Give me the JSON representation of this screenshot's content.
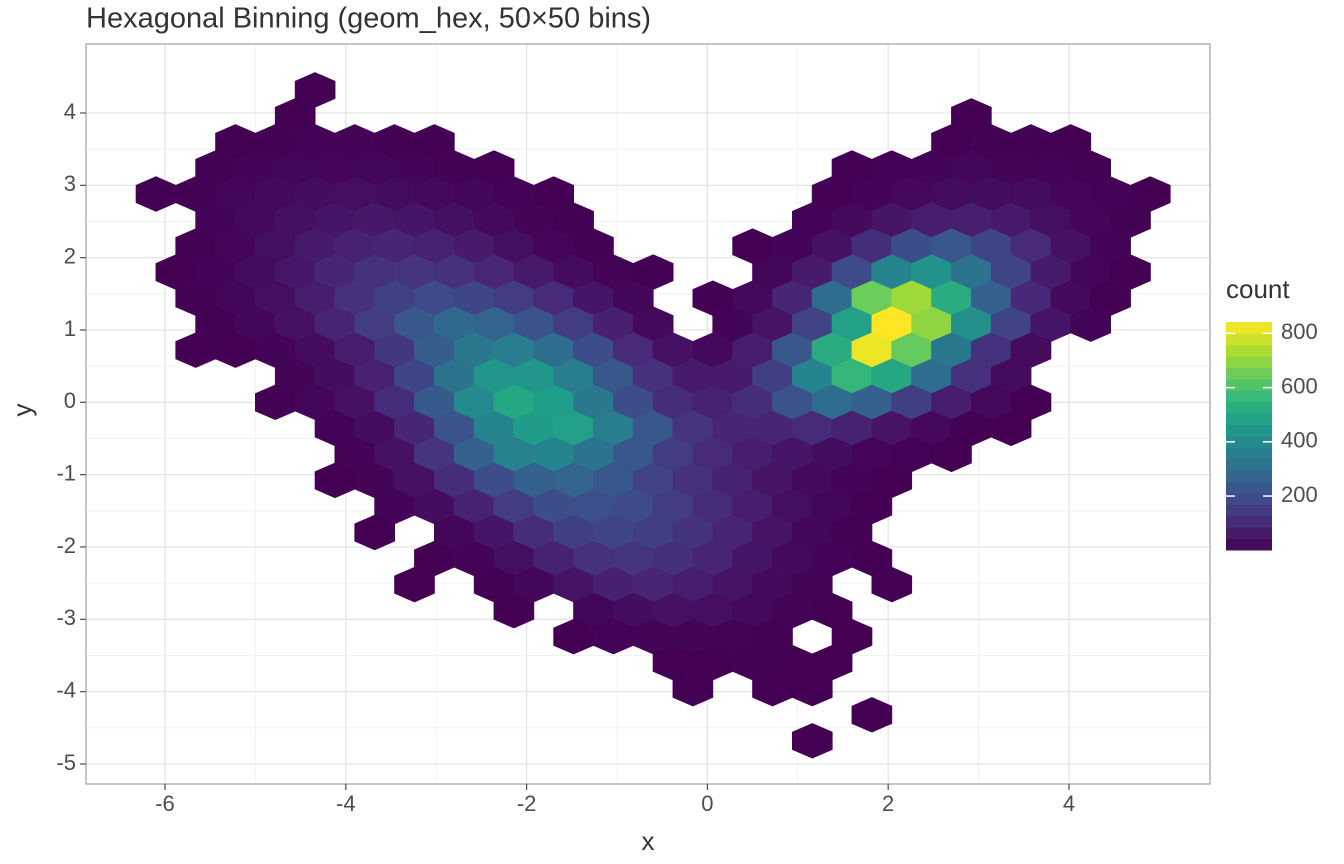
{
  "chart_data": {
    "type": "hexbin",
    "title": "Hexagonal Binning (geom_hex, 50×50 bins)",
    "x_label": "x",
    "y_label": "y",
    "xlim": [
      -6.874,
      5.56
    ],
    "ylim": [
      -5.277,
      4.954
    ],
    "xticks": [
      -6,
      -4,
      -2,
      0,
      2,
      4
    ],
    "yticks": [
      -5,
      -4,
      -3,
      -2,
      -1,
      0,
      1,
      2,
      3,
      4
    ],
    "grid": true,
    "colorbar": {
      "title": "count",
      "lim": [
        1,
        842
      ],
      "ticks": [
        200,
        400,
        600,
        800
      ],
      "colors": [
        "#440154",
        "#482878",
        "#3e4989",
        "#31688e",
        "#26828e",
        "#1f9e89",
        "#35b779",
        "#6ece58",
        "#b5de2b",
        "#fde725"
      ]
    },
    "rows": [
      {
        "y": 4.32,
        "x": [
          -4.34
        ],
        "counts": [
          1
        ]
      },
      {
        "y": 3.96,
        "x": [
          -4.56,
          2.92
        ],
        "counts": [
          1,
          1
        ]
      },
      {
        "y": 3.6,
        "x": [
          -5.22,
          -4.78,
          -4.34,
          -3.9,
          -3.46,
          -3.02,
          2.7,
          3.14,
          3.58,
          4.02
        ],
        "counts": [
          2,
          4,
          6,
          5,
          3,
          1,
          2,
          3,
          3,
          1
        ]
      },
      {
        "y": 3.24,
        "x": [
          -5.44,
          -5.0,
          -4.56,
          -4.12,
          -3.68,
          -3.24,
          -2.8,
          -2.36,
          1.6,
          2.04,
          2.48,
          2.92,
          3.36,
          3.8,
          4.24
        ],
        "counts": [
          3,
          8,
          12,
          14,
          12,
          8,
          4,
          2,
          2,
          5,
          9,
          12,
          10,
          6,
          3
        ]
      },
      {
        "y": 2.88,
        "x": [
          -6.1,
          -5.66,
          -5.22,
          -4.78,
          -4.34,
          -3.9,
          -3.46,
          -3.02,
          -2.58,
          -2.14,
          -1.7,
          1.38,
          1.82,
          2.26,
          2.7,
          3.14,
          3.58,
          4.02,
          4.46,
          4.9
        ],
        "counts": [
          1,
          4,
          12,
          22,
          30,
          32,
          28,
          20,
          12,
          6,
          2,
          2,
          8,
          18,
          28,
          30,
          24,
          14,
          6,
          2
        ]
      },
      {
        "y": 2.52,
        "x": [
          -5.44,
          -5.0,
          -4.56,
          -4.12,
          -3.68,
          -3.24,
          -2.8,
          -2.36,
          -1.92,
          -1.48,
          1.16,
          1.6,
          2.04,
          2.48,
          2.92,
          3.36,
          3.8,
          4.24,
          4.68
        ],
        "counts": [
          8,
          20,
          38,
          50,
          55,
          50,
          38,
          22,
          10,
          3,
          6,
          22,
          48,
          70,
          72,
          58,
          34,
          14,
          3
        ]
      },
      {
        "y": 2.16,
        "x": [
          -5.66,
          -5.22,
          -4.78,
          -4.34,
          -3.9,
          -3.46,
          -3.02,
          -2.58,
          -2.14,
          -1.7,
          -1.26,
          0.5,
          0.94,
          1.38,
          1.82,
          2.26,
          2.7,
          3.14,
          3.58,
          4.02,
          4.46
        ],
        "counts": [
          3,
          14,
          35,
          60,
          80,
          88,
          80,
          60,
          35,
          14,
          3,
          1,
          8,
          40,
          110,
          200,
          230,
          180,
          100,
          40,
          8
        ]
      },
      {
        "y": 1.8,
        "x": [
          -5.88,
          -5.44,
          -5.0,
          -4.56,
          -4.12,
          -3.68,
          -3.24,
          -2.8,
          -2.36,
          -1.92,
          -1.48,
          -1.04,
          -0.6,
          0.72,
          1.16,
          1.6,
          2.04,
          2.48,
          2.92,
          3.36,
          3.8,
          4.24,
          4.68
        ],
        "counts": [
          2,
          8,
          25,
          52,
          90,
          120,
          130,
          120,
          92,
          58,
          28,
          10,
          3,
          12,
          60,
          190,
          380,
          430,
          320,
          170,
          60,
          14,
          2
        ]
      },
      {
        "y": 1.44,
        "x": [
          -5.66,
          -5.22,
          -4.78,
          -4.34,
          -3.9,
          -3.46,
          -3.02,
          -2.58,
          -2.14,
          -1.7,
          -1.26,
          -0.82,
          0.06,
          0.5,
          0.94,
          1.38,
          1.82,
          2.26,
          2.7,
          3.14,
          3.58,
          4.02,
          4.46
        ],
        "counts": [
          4,
          12,
          32,
          68,
          120,
          165,
          190,
          180,
          150,
          100,
          50,
          15,
          3,
          20,
          90,
          300,
          650,
          720,
          520,
          260,
          95,
          22,
          3
        ]
      },
      {
        "y": 1.08,
        "x": [
          -5.44,
          -5.0,
          -4.56,
          -4.12,
          -3.68,
          -3.24,
          -2.8,
          -2.36,
          -1.92,
          -1.48,
          -1.04,
          -0.6,
          0.28,
          0.72,
          1.16,
          1.6,
          2.04,
          2.48,
          2.92,
          3.36,
          3.8,
          4.24
        ],
        "counts": [
          4,
          16,
          40,
          85,
          150,
          230,
          280,
          270,
          220,
          150,
          75,
          22,
          8,
          45,
          170,
          480,
          842,
          700,
          420,
          170,
          50,
          8
        ]
      },
      {
        "y": 0.72,
        "x": [
          -5.66,
          -5.22,
          -4.78,
          -4.34,
          -3.9,
          -3.46,
          -3.02,
          -2.58,
          -2.14,
          -1.7,
          -1.26,
          -0.82,
          -0.38,
          0.06,
          0.5,
          0.94,
          1.38,
          1.82,
          2.26,
          2.7,
          3.14,
          3.58
        ],
        "counts": [
          1,
          2,
          8,
          28,
          65,
          140,
          250,
          340,
          360,
          300,
          200,
          100,
          40,
          20,
          70,
          230,
          520,
          820,
          640,
          340,
          120,
          25
        ]
      },
      {
        "y": 0.36,
        "x": [
          -4.56,
          -4.12,
          -3.68,
          -3.24,
          -2.8,
          -2.36,
          -1.92,
          -1.48,
          -1.04,
          -0.6,
          -0.16,
          0.28,
          0.72,
          1.16,
          1.6,
          2.04,
          2.48,
          2.92,
          3.36
        ],
        "counts": [
          10,
          30,
          80,
          180,
          320,
          440,
          440,
          360,
          230,
          120,
          60,
          60,
          160,
          380,
          560,
          500,
          300,
          120,
          25
        ]
      },
      {
        "y": 0.0,
        "x": [
          -4.78,
          -4.34,
          -3.9,
          -3.46,
          -3.02,
          -2.58,
          -2.14,
          -1.7,
          -1.26,
          -0.82,
          -0.38,
          0.06,
          0.5,
          0.94,
          1.38,
          1.82,
          2.26,
          2.7,
          3.14,
          3.58
        ],
        "counts": [
          3,
          12,
          40,
          110,
          240,
          400,
          500,
          470,
          340,
          200,
          110,
          80,
          110,
          220,
          300,
          260,
          160,
          70,
          18,
          2
        ]
      },
      {
        "y": -0.36,
        "x": [
          -4.12,
          -3.68,
          -3.24,
          -2.8,
          -2.36,
          -1.92,
          -1.48,
          -1.04,
          -0.6,
          -0.16,
          0.28,
          0.72,
          1.16,
          1.6,
          2.04,
          2.48,
          2.92,
          3.36
        ],
        "counts": [
          6,
          30,
          90,
          220,
          380,
          460,
          480,
          360,
          230,
          130,
          90,
          90,
          100,
          80,
          45,
          18,
          4,
          1
        ]
      },
      {
        "y": -0.72,
        "x": [
          -3.9,
          -3.46,
          -3.02,
          -2.58,
          -2.14,
          -1.7,
          -1.26,
          -0.82,
          -0.38,
          0.06,
          0.5,
          0.94,
          1.38,
          1.82,
          2.26,
          2.7
        ],
        "counts": [
          8,
          40,
          130,
          260,
          370,
          380,
          320,
          230,
          150,
          100,
          70,
          50,
          30,
          14,
          5,
          1
        ]
      },
      {
        "y": -1.08,
        "x": [
          -4.12,
          -3.68,
          -3.24,
          -2.8,
          -2.36,
          -1.92,
          -1.48,
          -1.04,
          -0.6,
          -0.16,
          0.28,
          0.72,
          1.16,
          1.6,
          2.04
        ],
        "counts": [
          1,
          10,
          40,
          110,
          200,
          260,
          270,
          230,
          170,
          120,
          80,
          45,
          22,
          8,
          2
        ]
      },
      {
        "y": -1.44,
        "x": [
          -3.46,
          -3.02,
          -2.58,
          -2.14,
          -1.7,
          -1.26,
          -0.82,
          -0.38,
          0.06,
          0.5,
          0.94,
          1.38,
          1.82
        ],
        "counts": [
          8,
          30,
          80,
          150,
          200,
          210,
          190,
          150,
          110,
          70,
          35,
          12,
          2
        ]
      },
      {
        "y": -1.8,
        "x": [
          -3.68,
          -2.8,
          -2.36,
          -1.92,
          -1.48,
          -1.04,
          -0.6,
          -0.16,
          0.28,
          0.72,
          1.16,
          1.6
        ],
        "counts": [
          1,
          15,
          50,
          110,
          160,
          175,
          160,
          125,
          85,
          45,
          15,
          3
        ]
      },
      {
        "y": -2.16,
        "x": [
          -3.02,
          -2.58,
          -2.14,
          -1.7,
          -1.26,
          -0.82,
          -0.38,
          0.06,
          0.5,
          0.94,
          1.38,
          1.82
        ],
        "counts": [
          1,
          8,
          35,
          80,
          120,
          130,
          115,
          85,
          50,
          20,
          5,
          1
        ]
      },
      {
        "y": -2.52,
        "x": [
          -3.24,
          -2.36,
          -1.92,
          -1.48,
          -1.04,
          -0.6,
          -0.16,
          0.28,
          0.72,
          1.16,
          2.04
        ],
        "counts": [
          1,
          3,
          15,
          45,
          75,
          85,
          70,
          45,
          22,
          7,
          1
        ]
      },
      {
        "y": -2.88,
        "x": [
          -2.14,
          -1.26,
          -0.82,
          -0.38,
          0.06,
          0.5,
          0.94,
          1.38
        ],
        "counts": [
          1,
          12,
          30,
          40,
          32,
          18,
          7,
          2
        ]
      },
      {
        "y": -3.24,
        "x": [
          -1.48,
          -1.04,
          -0.6,
          -0.16,
          0.28,
          0.72,
          1.6
        ],
        "counts": [
          2,
          6,
          10,
          10,
          7,
          3,
          1
        ]
      },
      {
        "y": -3.6,
        "x": [
          -0.38,
          0.06,
          0.5,
          0.94,
          1.38
        ],
        "counts": [
          1,
          2,
          3,
          2,
          1
        ]
      },
      {
        "y": -3.96,
        "x": [
          -0.16,
          0.72,
          1.16
        ],
        "counts": [
          1,
          1,
          1
        ]
      },
      {
        "y": -4.32,
        "x": [
          1.82
        ],
        "counts": [
          1
        ]
      },
      {
        "y": -4.68,
        "x": [
          1.16
        ],
        "counts": [
          1
        ]
      }
    ]
  }
}
